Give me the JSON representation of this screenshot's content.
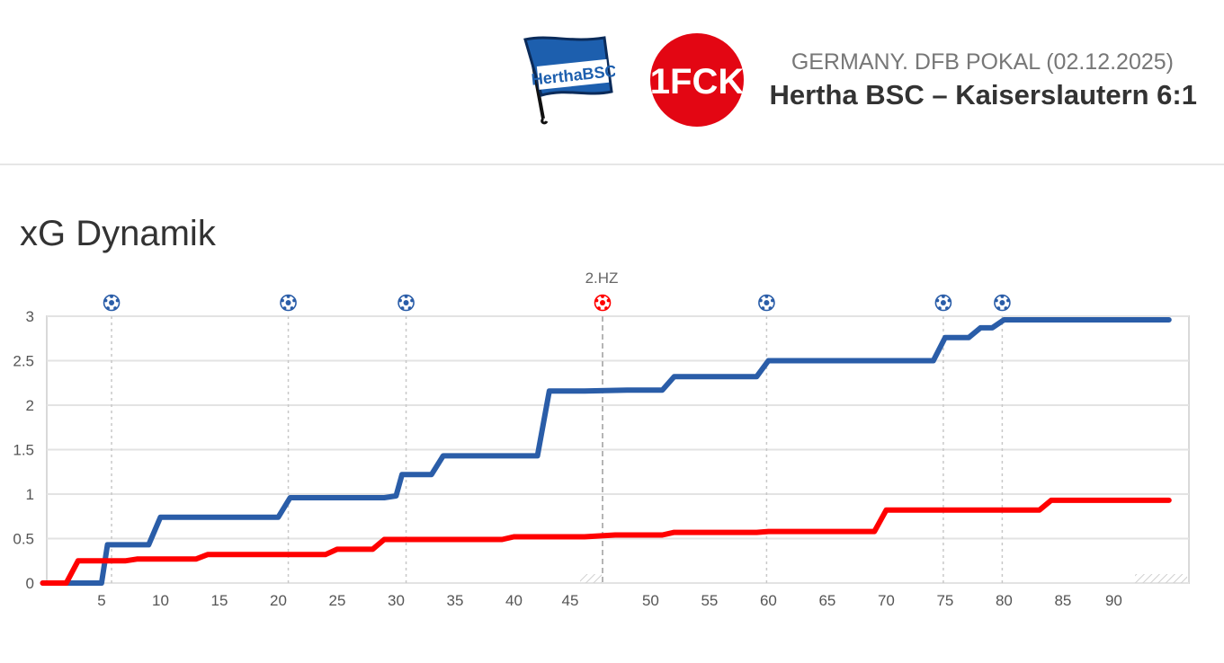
{
  "header": {
    "league": "GERMANY. DFB POKAL (02.12.2025)",
    "title": "Hertha BSC – Kaiserslautern 6:1",
    "home_logo_text": "HerthaBSC",
    "away_logo_text": "1FCK"
  },
  "section_title": "xG Dynamik",
  "colors": {
    "home": "#2a5da8",
    "away": "#ff0000",
    "grid": "#e3e3e3"
  },
  "chart_data": {
    "type": "line",
    "title": "xG Dynamik",
    "xlabel": "",
    "ylabel": "",
    "ylim": [
      0,
      3
    ],
    "y_ticks": [
      "0",
      "0.5",
      "1",
      "1.5",
      "2",
      "2.5",
      "3"
    ],
    "x_ticks_first_half": [
      "5",
      "10",
      "15",
      "20",
      "25",
      "30",
      "35",
      "40",
      "45"
    ],
    "x_ticks_second_half": [
      "50",
      "55",
      "60",
      "65",
      "70",
      "75",
      "80",
      "85",
      "90"
    ],
    "half_time_label": "2.HZ",
    "grid": true,
    "series": [
      {
        "team": "Hertha BSC",
        "color": "#2a5da8",
        "points": [
          [
            0,
            0
          ],
          [
            5,
            0
          ],
          [
            5.5,
            0.43
          ],
          [
            9,
            0.43
          ],
          [
            10,
            0.74
          ],
          [
            20,
            0.74
          ],
          [
            21,
            0.96
          ],
          [
            29,
            0.96
          ],
          [
            30,
            0.98
          ],
          [
            30.5,
            1.22
          ],
          [
            33,
            1.22
          ],
          [
            34,
            1.43
          ],
          [
            42,
            1.43
          ],
          [
            43,
            2.16
          ],
          [
            46,
            2.16
          ],
          [
            48,
            2.17
          ],
          [
            51,
            2.17
          ],
          [
            52,
            2.32
          ],
          [
            59,
            2.32
          ],
          [
            60,
            2.5
          ],
          [
            74,
            2.5
          ],
          [
            75,
            2.76
          ],
          [
            77,
            2.76
          ],
          [
            78,
            2.87
          ],
          [
            79,
            2.87
          ],
          [
            80,
            2.96
          ],
          [
            94,
            2.96
          ]
        ]
      },
      {
        "team": "Kaiserslautern",
        "color": "#ff0000",
        "points": [
          [
            0,
            0
          ],
          [
            2,
            0
          ],
          [
            3,
            0.25
          ],
          [
            7,
            0.25
          ],
          [
            8,
            0.27
          ],
          [
            13,
            0.27
          ],
          [
            14,
            0.32
          ],
          [
            24,
            0.32
          ],
          [
            25,
            0.38
          ],
          [
            28,
            0.38
          ],
          [
            29,
            0.49
          ],
          [
            35,
            0.49
          ],
          [
            39,
            0.49
          ],
          [
            40,
            0.52
          ],
          [
            46,
            0.52
          ],
          [
            47,
            0.54
          ],
          [
            51,
            0.54
          ],
          [
            52,
            0.57
          ],
          [
            59,
            0.57
          ],
          [
            60,
            0.58
          ],
          [
            69,
            0.58
          ],
          [
            70,
            0.82
          ],
          [
            83,
            0.82
          ],
          [
            84,
            0.93
          ],
          [
            94,
            0.93
          ]
        ]
      }
    ],
    "events": [
      {
        "minute": 6,
        "team": "Hertha BSC"
      },
      {
        "minute": 21,
        "team": "Hertha BSC"
      },
      {
        "minute": 31,
        "team": "Hertha BSC"
      },
      {
        "minute": 46,
        "team": "Kaiserslautern"
      },
      {
        "minute": 60,
        "team": "Hertha BSC"
      },
      {
        "minute": 75,
        "team": "Hertha BSC"
      },
      {
        "minute": 80,
        "team": "Hertha BSC"
      }
    ]
  }
}
